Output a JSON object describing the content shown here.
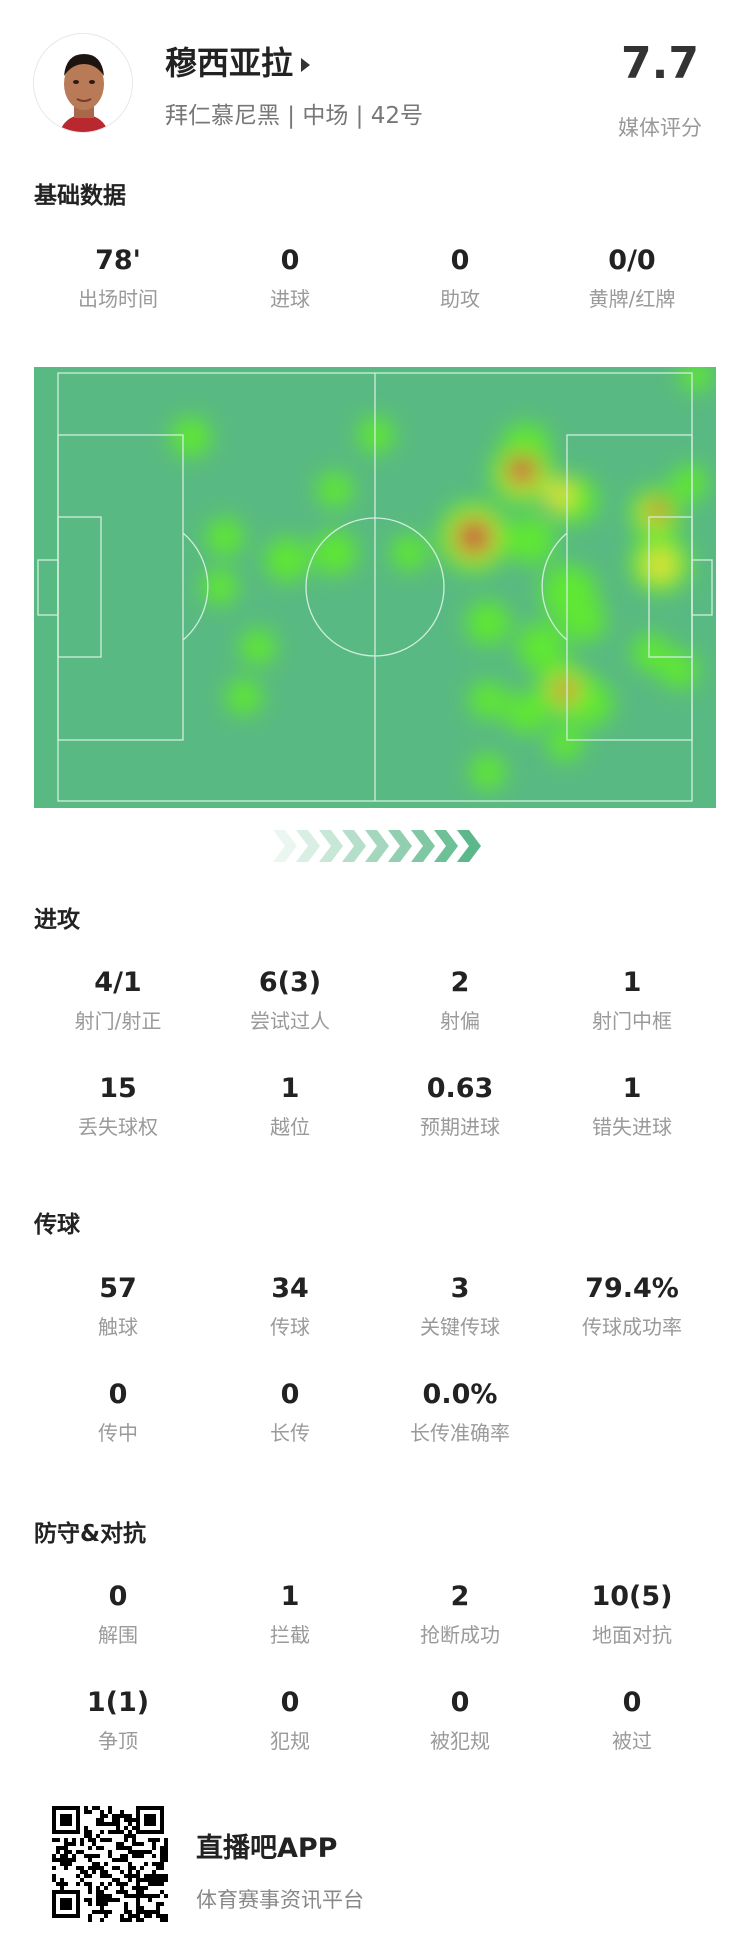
{
  "player": {
    "name": "穆西亚拉",
    "subtitle": "拜仁慕尼黑 | 中场 | 42号",
    "rating": "7.7",
    "rating_label": "媒体评分"
  },
  "basic": {
    "title": "基础数据",
    "stats": [
      {
        "value": "78'",
        "label": "出场时间"
      },
      {
        "value": "0",
        "label": "进球"
      },
      {
        "value": "0",
        "label": "助攻"
      },
      {
        "value": "0/0",
        "label": "黄牌/红牌"
      }
    ]
  },
  "heatmap": {
    "pitch_color": "#59b982",
    "line_color": "#cfeedd",
    "attack_direction": "right"
  },
  "attack": {
    "title": "进攻",
    "stats": [
      {
        "value": "4/1",
        "label": "射门/射正"
      },
      {
        "value": "6(3)",
        "label": "尝试过人"
      },
      {
        "value": "2",
        "label": "射偏"
      },
      {
        "value": "1",
        "label": "射门中框"
      },
      {
        "value": "15",
        "label": "丢失球权"
      },
      {
        "value": "1",
        "label": "越位"
      },
      {
        "value": "0.63",
        "label": "预期进球"
      },
      {
        "value": "1",
        "label": "错失进球"
      }
    ]
  },
  "passing": {
    "title": "传球",
    "stats": [
      {
        "value": "57",
        "label": "触球"
      },
      {
        "value": "34",
        "label": "传球"
      },
      {
        "value": "3",
        "label": "关键传球"
      },
      {
        "value": "79.4%",
        "label": "传球成功率"
      },
      {
        "value": "0",
        "label": "传中"
      },
      {
        "value": "0",
        "label": "长传"
      },
      {
        "value": "0.0%",
        "label": "长传准确率"
      }
    ]
  },
  "defense": {
    "title": "防守&对抗",
    "stats": [
      {
        "value": "0",
        "label": "解围"
      },
      {
        "value": "1",
        "label": "拦截"
      },
      {
        "value": "2",
        "label": "抢断成功"
      },
      {
        "value": "10(5)",
        "label": "地面对抗"
      },
      {
        "value": "1(1)",
        "label": "争顶"
      },
      {
        "value": "0",
        "label": "犯规"
      },
      {
        "value": "0",
        "label": "被犯规"
      },
      {
        "value": "0",
        "label": "被过"
      }
    ]
  },
  "footer": {
    "brand": "直播吧APP",
    "slogan": "体育赛事资讯平台"
  }
}
